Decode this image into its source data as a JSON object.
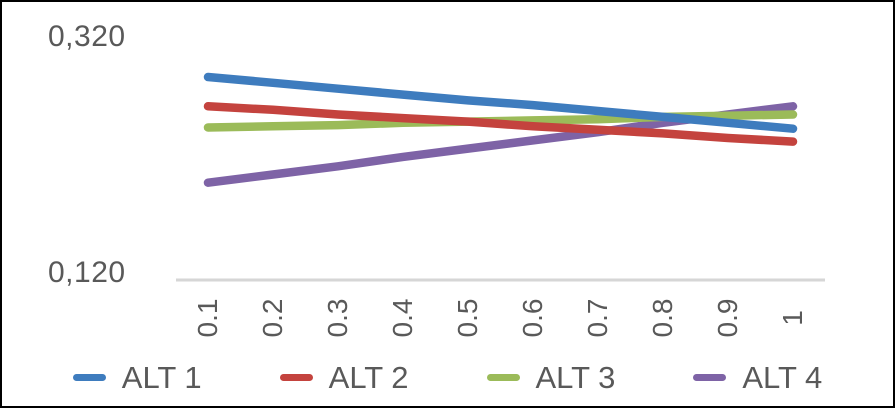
{
  "window": {
    "background_color": "#ffffff",
    "border_color": "#000000"
  },
  "chart_data": {
    "type": "line",
    "title": "",
    "x": [
      0.1,
      0.2,
      0.3,
      0.4,
      0.5,
      0.6,
      0.7,
      0.8,
      0.9,
      1
    ],
    "x_tick_labels": [
      "0.1",
      "0.2",
      "0.3",
      "0.4",
      "0.5",
      "0.6",
      "0.7",
      "0.8",
      "0.9",
      "1"
    ],
    "y_axis": {
      "labels": [
        "0,320",
        "0,120"
      ],
      "max": 0.32,
      "min": 0.12
    },
    "series": [
      {
        "name": "ALT 1",
        "color": "#3E7CBE",
        "values": [
          0.286,
          0.281,
          0.276,
          0.271,
          0.266,
          0.262,
          0.257,
          0.252,
          0.247,
          0.242
        ]
      },
      {
        "name": "ALT 2",
        "color": "#C4433E",
        "values": [
          0.261,
          0.258,
          0.254,
          0.251,
          0.248,
          0.244,
          0.241,
          0.238,
          0.234,
          0.231
        ]
      },
      {
        "name": "ALT 3",
        "color": "#9BBB59",
        "values": [
          0.243,
          0.244,
          0.245,
          0.247,
          0.248,
          0.249,
          0.25,
          0.252,
          0.253,
          0.254
        ]
      },
      {
        "name": "ALT 4",
        "color": "#7E63A6",
        "values": [
          0.196,
          0.203,
          0.21,
          0.218,
          0.225,
          0.232,
          0.239,
          0.247,
          0.254,
          0.261
        ]
      }
    ],
    "legend": {
      "position": "bottom",
      "entries": [
        "ALT 1",
        "ALT 2",
        "ALT 3",
        "ALT 4"
      ]
    },
    "grid": false,
    "axis_line_color": "#D6D6D6",
    "text_color": "#595959",
    "line_width": 8.5
  }
}
